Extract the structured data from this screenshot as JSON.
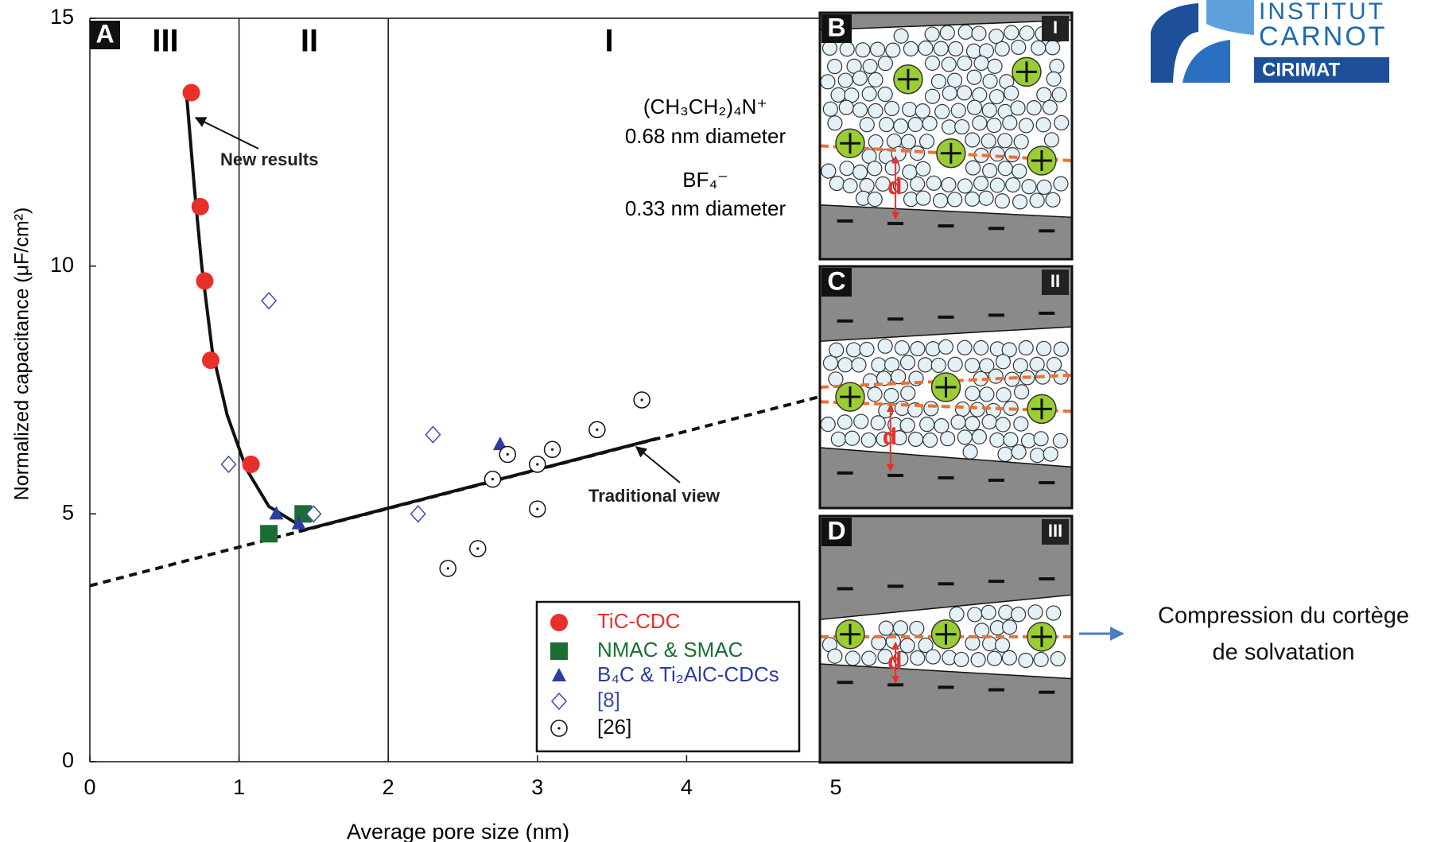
{
  "chart_data": {
    "type": "scatter",
    "panel_label": "A",
    "x_label": "Average pore size (nm)",
    "y_label": "Normalized  capacitance (μF/cm²)",
    "xlim": [
      0,
      5
    ],
    "ylim": [
      0,
      15
    ],
    "xticks": [
      0,
      1,
      2,
      3,
      4,
      5
    ],
    "yticks": [
      0,
      5,
      10,
      15
    ],
    "region_bounds": [
      1,
      2
    ],
    "region_labels": [
      "III",
      "II",
      "I"
    ],
    "legend_position": "lower-right",
    "series": [
      {
        "name": "TiC-CDC",
        "color": "#e8302a",
        "marker": "circle",
        "x": [
          0.68,
          0.74,
          0.77,
          0.81,
          1.08
        ],
        "values": [
          13.5,
          11.2,
          9.7,
          8.1,
          6.0
        ]
      },
      {
        "name": "NMAC  & SMAC",
        "color": "#1a6e34",
        "marker": "square",
        "x": [
          1.2,
          1.43
        ],
        "values": [
          4.6,
          5.0
        ]
      },
      {
        "name": "B₄C & Ti₂AlC-CDCs",
        "color": "#2a3da0",
        "marker": "triangle",
        "x": [
          1.25,
          1.4,
          2.75
        ],
        "values": [
          5.0,
          4.8,
          6.4
        ]
      },
      {
        "name": "[8]",
        "color": "#3a4db0",
        "marker": "diamond",
        "x": [
          1.2,
          0.93,
          1.5,
          2.2,
          2.3
        ],
        "values": [
          9.3,
          6.0,
          5.0,
          5.0,
          6.6
        ]
      },
      {
        "name": "[26]",
        "color": "#111111",
        "marker": "dotted-circle",
        "x": [
          2.4,
          2.6,
          2.7,
          2.8,
          3.0,
          3.0,
          3.1,
          3.4,
          3.7
        ],
        "values": [
          3.9,
          4.3,
          5.7,
          6.2,
          5.1,
          6.0,
          6.3,
          6.7,
          7.3
        ]
      }
    ],
    "fits": [
      {
        "x": [
          0,
          5
        ],
        "values": [
          3.55,
          7.45
        ],
        "dashed": true
      },
      {
        "x": [
          1.4,
          3.8
        ],
        "values": [
          4.65,
          6.52
        ],
        "dashed": false
      },
      {
        "x": [
          0.65,
          0.7,
          0.75,
          0.82,
          0.92,
          1.05,
          1.2,
          1.4
        ],
        "values": [
          13.4,
          11.6,
          10.0,
          8.3,
          7.0,
          5.9,
          5.15,
          4.78
        ],
        "dashed": false
      }
    ],
    "annotations": [
      "New results",
      "Traditional view"
    ],
    "ion_info": [
      "(CH₃CH₂)₄N⁺",
      "0.68  nm diameter",
      "BF₄⁻",
      "0.33 nm diameter"
    ]
  },
  "panels": [
    {
      "label": "B",
      "regime": "I",
      "distance_label": "d"
    },
    {
      "label": "C",
      "regime": "II",
      "distance_label": "d"
    },
    {
      "label": "D",
      "regime": "III",
      "distance_label": "d"
    }
  ],
  "logo": {
    "lines": [
      "INSTITUT",
      "CARNOT",
      "CIRIMAT"
    ]
  },
  "note": {
    "lines": [
      "Compression du cortège",
      "de solvatation"
    ]
  }
}
